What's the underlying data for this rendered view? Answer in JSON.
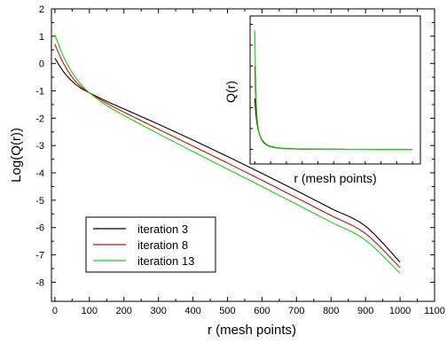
{
  "chart_data": [
    {
      "type": "line",
      "xlabel": "r (mesh points)",
      "ylabel": "Log(Q(r))",
      "xlim": [
        -10,
        1100
      ],
      "ylim": [
        -8.7,
        2
      ],
      "x_ticks": [
        0,
        100,
        200,
        300,
        400,
        500,
        600,
        700,
        800,
        900,
        1000,
        1100
      ],
      "y_ticks": [
        -8,
        -7,
        -6,
        -5,
        -4,
        -3,
        -2,
        -1,
        0,
        1,
        2
      ],
      "x_tick_labels": [
        "0",
        "100",
        "200",
        "300",
        "400",
        "500",
        "600",
        "700",
        "800",
        "900",
        "1000",
        "1100"
      ],
      "y_tick_labels": [
        "-8",
        "-7",
        "-6",
        "-5",
        "-4",
        "-3",
        "-2",
        "-1",
        "0",
        "1",
        "2"
      ],
      "legend_position": "bottom-left",
      "grid": false,
      "series": [
        {
          "name": "iteration 3",
          "color": "#000000",
          "x": [
            0,
            25,
            50,
            75,
            100,
            150,
            200,
            300,
            400,
            500,
            600,
            700,
            800,
            900,
            1000
          ],
          "y": [
            0.2,
            -0.3,
            -0.65,
            -0.9,
            -1.07,
            -1.38,
            -1.66,
            -2.22,
            -2.8,
            -3.4,
            -4.02,
            -4.65,
            -5.3,
            -5.95,
            -7.27
          ]
        },
        {
          "name": "iteration 8",
          "color": "#e00000",
          "x": [
            0,
            25,
            50,
            75,
            100,
            150,
            200,
            300,
            400,
            500,
            600,
            700,
            800,
            900,
            1000
          ],
          "y": [
            0.7,
            0.0,
            -0.5,
            -0.84,
            -1.07,
            -1.45,
            -1.78,
            -2.4,
            -3.02,
            -3.64,
            -4.27,
            -4.91,
            -5.56,
            -6.22,
            -7.47
          ]
        },
        {
          "name": "iteration 13",
          "color": "#00dd00",
          "x": [
            0,
            25,
            50,
            75,
            100,
            150,
            200,
            300,
            400,
            500,
            600,
            700,
            800,
            900,
            1000
          ],
          "y": [
            1.05,
            0.25,
            -0.33,
            -0.75,
            -1.07,
            -1.53,
            -1.9,
            -2.57,
            -3.22,
            -3.86,
            -4.5,
            -5.15,
            -5.8,
            -6.46,
            -7.67
          ]
        }
      ]
    },
    {
      "type": "line",
      "title": "",
      "xlabel": "r (mesh points)",
      "ylabel": "Q(r)",
      "grid": false,
      "series": [
        {
          "color": "#000000",
          "x": [
            0,
            3,
            6,
            10,
            15,
            20,
            30,
            45,
            60,
            80,
            100,
            150,
            200,
            300,
            400,
            500,
            600,
            700,
            800,
            900,
            1000
          ],
          "y": [
            1.22,
            1.05,
            0.9,
            0.75,
            0.6,
            0.49,
            0.35,
            0.23,
            0.16,
            0.1,
            0.07,
            0.035,
            0.02,
            0.008,
            0.004,
            0.002,
            0.001,
            0.0006,
            0.0003,
            0.0002,
            0.0001
          ]
        },
        {
          "color": "#e00000",
          "x": [
            0,
            3,
            6,
            10,
            15,
            20,
            30,
            45,
            60,
            80,
            100,
            150,
            200,
            300,
            400,
            500,
            600,
            700,
            800,
            900,
            1000
          ],
          "y": [
            2.0,
            1.55,
            1.22,
            0.92,
            0.68,
            0.52,
            0.35,
            0.22,
            0.15,
            0.095,
            0.066,
            0.03,
            0.017,
            0.007,
            0.003,
            0.0015,
            0.0008,
            0.0004,
            0.0002,
            0.0001,
            0.0001
          ]
        },
        {
          "color": "#00dd00",
          "x": [
            0,
            3,
            6,
            10,
            15,
            20,
            30,
            45,
            60,
            80,
            100,
            150,
            200,
            300,
            400,
            500,
            600,
            700,
            800,
            900,
            1000
          ],
          "y": [
            2.85,
            2.05,
            1.5,
            1.05,
            0.73,
            0.54,
            0.35,
            0.21,
            0.14,
            0.09,
            0.06,
            0.028,
            0.015,
            0.006,
            0.0025,
            0.0012,
            0.0006,
            0.0003,
            0.0002,
            0.0001,
            0.0001
          ]
        }
      ]
    }
  ]
}
